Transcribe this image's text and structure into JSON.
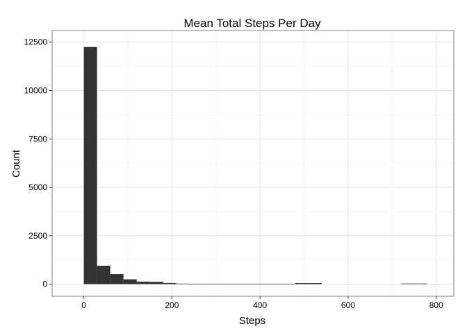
{
  "chart_data": {
    "type": "bar",
    "title": "Mean Total Steps Per Day",
    "xlabel": "Steps",
    "ylabel": "Count",
    "xlim": [
      -72,
      840
    ],
    "ylim": [
      -625,
      13100
    ],
    "x_ticks": [
      0,
      200,
      400,
      600,
      800
    ],
    "y_ticks": [
      0,
      2500,
      5000,
      7500,
      10000,
      12500
    ],
    "x_tick_labels": [
      "0",
      "200",
      "400",
      "600",
      "800"
    ],
    "y_tick_labels": [
      "0",
      "2500",
      "5000",
      "7500",
      "10000",
      "12500"
    ],
    "grid": true,
    "bar_color": "#333333",
    "bins": [
      {
        "x0": 0,
        "x1": 30,
        "count": 12250
      },
      {
        "x0": 30,
        "x1": 60,
        "count": 950
      },
      {
        "x0": 60,
        "x1": 90,
        "count": 520
      },
      {
        "x0": 90,
        "x1": 120,
        "count": 250
      },
      {
        "x0": 120,
        "x1": 150,
        "count": 130
      },
      {
        "x0": 150,
        "x1": 180,
        "count": 120
      },
      {
        "x0": 180,
        "x1": 210,
        "count": 60
      },
      {
        "x0": 210,
        "x1": 240,
        "count": 25
      },
      {
        "x0": 240,
        "x1": 270,
        "count": 20
      },
      {
        "x0": 270,
        "x1": 300,
        "count": 20
      },
      {
        "x0": 300,
        "x1": 330,
        "count": 15
      },
      {
        "x0": 330,
        "x1": 360,
        "count": 15
      },
      {
        "x0": 360,
        "x1": 390,
        "count": 15
      },
      {
        "x0": 390,
        "x1": 420,
        "count": 15
      },
      {
        "x0": 420,
        "x1": 450,
        "count": 15
      },
      {
        "x0": 450,
        "x1": 480,
        "count": 15
      },
      {
        "x0": 480,
        "x1": 510,
        "count": 55
      },
      {
        "x0": 510,
        "x1": 540,
        "count": 55
      },
      {
        "x0": 540,
        "x1": 570,
        "count": 0
      },
      {
        "x0": 570,
        "x1": 600,
        "count": 0
      },
      {
        "x0": 600,
        "x1": 630,
        "count": 0
      },
      {
        "x0": 630,
        "x1": 660,
        "count": 0
      },
      {
        "x0": 660,
        "x1": 690,
        "count": 0
      },
      {
        "x0": 690,
        "x1": 720,
        "count": 0
      },
      {
        "x0": 720,
        "x1": 750,
        "count": 30
      },
      {
        "x0": 750,
        "x1": 780,
        "count": 30
      }
    ]
  }
}
